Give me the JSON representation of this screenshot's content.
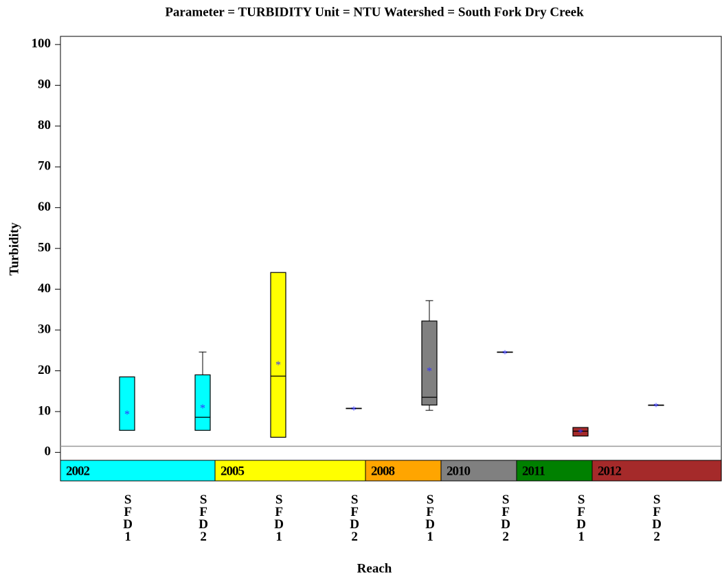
{
  "chart_data": {
    "type": "box",
    "title": "Parameter = TURBIDITY  Unit = NTU  Watershed = South Fork Dry Creek",
    "x_label": "Reach",
    "y_label": "Turbidity",
    "categories": [
      "SFD1",
      "SFD2",
      "SFD1",
      "SFD2",
      "SFD1",
      "SFD2",
      "SFD1",
      "SFD2"
    ],
    "colors": [
      "#00ffff",
      "#00ffff",
      "#ffff00",
      "#ffff00",
      "#808080",
      "#808080",
      "#a52a2a",
      "#a52a2a"
    ],
    "q1": [
      5.4,
      5.4,
      3.7,
      10.8,
      11.6,
      24.6,
      4.0,
      11.6
    ],
    "median": [
      null,
      8.6,
      18.7,
      10.8,
      13.5,
      24.6,
      5.2,
      11.6
    ],
    "q3": [
      18.5,
      19.0,
      44.1,
      10.8,
      32.2,
      24.6,
      6.1,
      11.6
    ],
    "whisker_low": [
      null,
      null,
      null,
      null,
      10.3,
      null,
      null,
      null
    ],
    "whisker_high": [
      null,
      24.6,
      null,
      null,
      37.2,
      null,
      null,
      null
    ],
    "mean": [
      9.8,
      11.3,
      21.9,
      10.8,
      20.4,
      24.6,
      5.2,
      11.6
    ],
    "mean_color": "#3333ff",
    "reference_line": 1.5,
    "blocks": [
      {
        "label": "2002",
        "color": "#00ffff"
      },
      {
        "label": "2005",
        "color": "#ffff00"
      },
      {
        "label": "2008",
        "color": "#ffa500"
      },
      {
        "label": "2010",
        "color": "#808080"
      },
      {
        "label": "2011",
        "color": "#008000"
      },
      {
        "label": "2012",
        "color": "#a52a2a"
      }
    ],
    "ylim": [
      -7,
      102
    ],
    "yticks": [
      0,
      10,
      20,
      30,
      40,
      50,
      60,
      70,
      80,
      90,
      100
    ]
  }
}
